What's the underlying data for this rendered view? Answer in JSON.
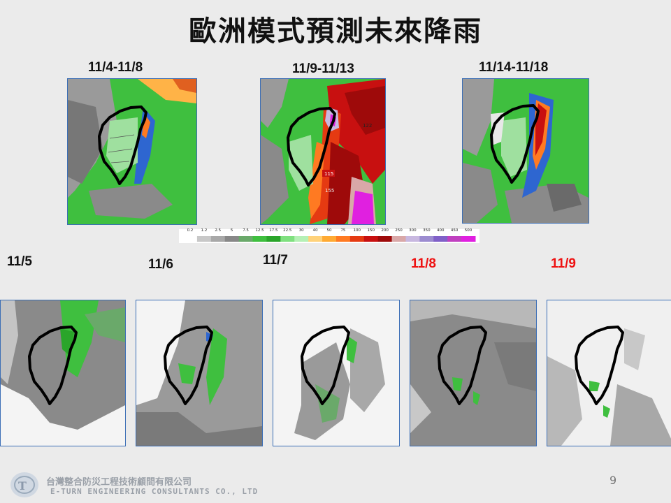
{
  "title": "歐洲模式預測未來降雨",
  "top_maps": [
    {
      "label": "11/4-11/8"
    },
    {
      "label": "11/9-11/13",
      "annotations": [
        "122",
        "115",
        "155"
      ]
    },
    {
      "label": "11/14-11/18"
    }
  ],
  "colorbar": {
    "ticks": [
      "0.2",
      "1.2",
      "2.5",
      "5",
      "7.5",
      "12.5",
      "17.5",
      "22.5",
      "30",
      "40",
      "50",
      "75",
      "100",
      "150",
      "200",
      "250",
      "300",
      "350",
      "400",
      "450",
      "500"
    ],
    "colors": [
      "#ffffff",
      "#c8c8c8",
      "#a8a8a8",
      "#888888",
      "#6aa96a",
      "#3fbf3f",
      "#2aa52a",
      "#7fe07f",
      "#b5f0b5",
      "#ffd27a",
      "#ffaa33",
      "#ff7a22",
      "#e53a12",
      "#c81010",
      "#9e0a0a",
      "#d9a8a8",
      "#c8b8e0",
      "#9c8cd0",
      "#8060c8",
      "#c040c0",
      "#e020e0"
    ]
  },
  "bottom_maps": [
    {
      "label": "11/5",
      "highlight": false
    },
    {
      "label": "11/6",
      "highlight": false
    },
    {
      "label": "11/7",
      "highlight": false
    },
    {
      "label": "11/8",
      "highlight": true
    },
    {
      "label": "11/9",
      "highlight": true
    }
  ],
  "footer": {
    "company_zh": "台灣整合防災工程技術顧問有限公司",
    "company_en": "E-TURN ENGINEERING CONSULTANTS CO., LTD",
    "page_number": "9"
  }
}
